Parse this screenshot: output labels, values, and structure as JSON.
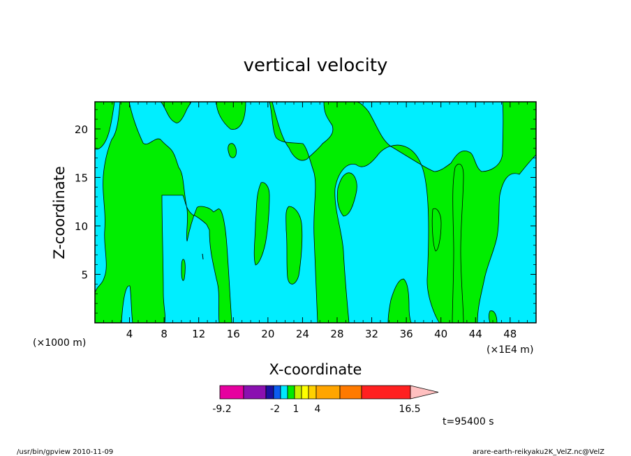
{
  "chart_data": {
    "type": "heatmap",
    "title": "vertical velocity",
    "xlabel": "X-coordinate",
    "ylabel": "Z-coordinate",
    "x_unit_left": "(×1000 m)",
    "x_unit_right": "(×1E4 m)",
    "xlim": [
      0,
      51
    ],
    "ylim": [
      0,
      22.8
    ],
    "x_ticks": [
      4,
      8,
      12,
      16,
      20,
      24,
      28,
      32,
      36,
      40,
      44,
      48
    ],
    "y_ticks": [
      5,
      10,
      15,
      20
    ],
    "time_label": "t=95400 s",
    "fill_levels": [
      {
        "name": "cyan",
        "color": "#00eeff"
      },
      {
        "name": "green",
        "color": "#00ee00"
      }
    ],
    "contour_color": "#000000",
    "colorbar": {
      "colors": [
        "#e6009f",
        "#8a10b0",
        "#1c10a0",
        "#0a5cf0",
        "#00e8ff",
        "#00ea00",
        "#c8f000",
        "#ffff00",
        "#ffd000",
        "#ffa500",
        "#ff7a00",
        "#ff2020",
        "#ff7a72",
        "#ffc0c0"
      ],
      "tick_labels": [
        "-9.2",
        "-2",
        "1",
        "4",
        "16.5"
      ],
      "extend": "max"
    }
  },
  "footer": {
    "left": "/usr/bin/gpview   2010-11-09",
    "right": "arare-earth-reikyaku2K_VelZ.nc@VelZ"
  }
}
